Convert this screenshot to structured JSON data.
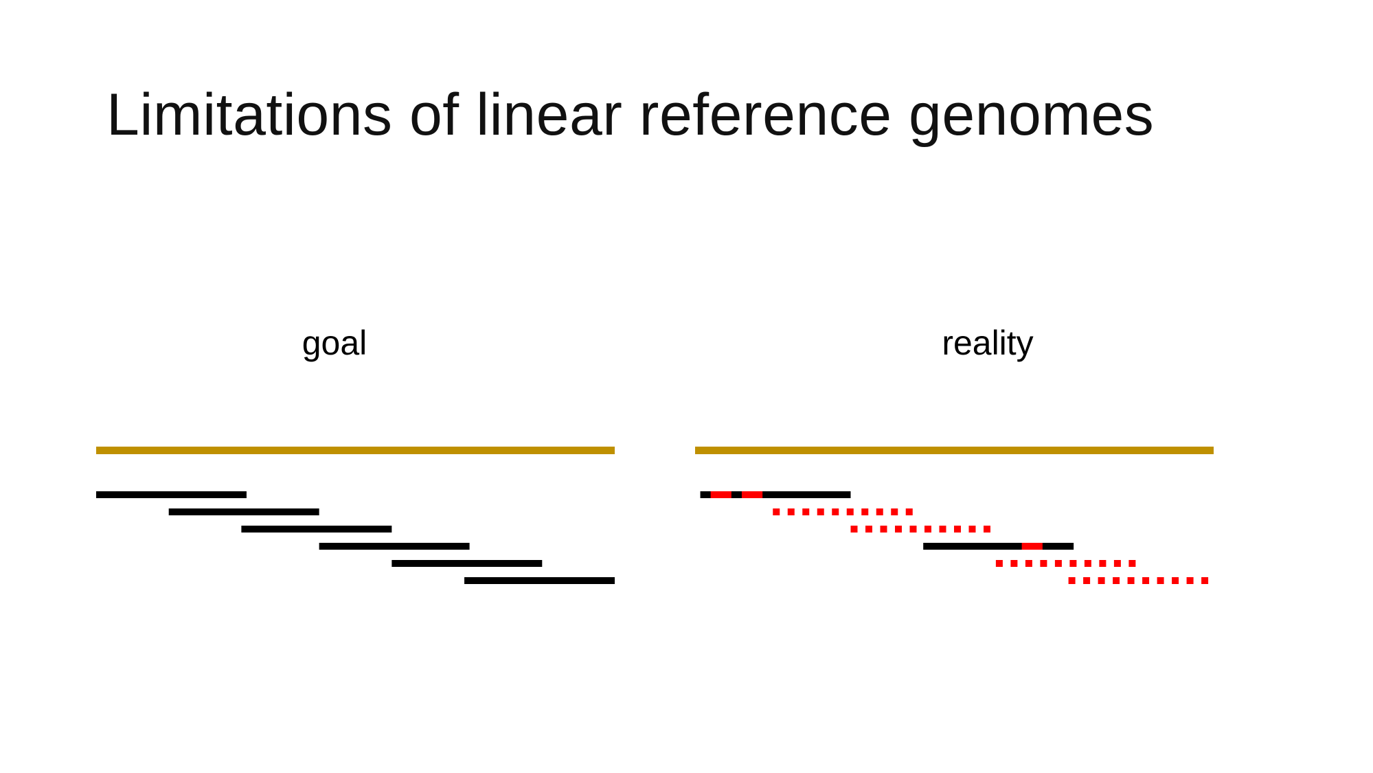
{
  "slide": {
    "title": "Limitations of linear reference genomes"
  },
  "panels": {
    "goal": {
      "label": "goal",
      "reads": [
        {
          "start": 0.0,
          "end": 0.29,
          "mismatches": [],
          "style": "solid"
        },
        {
          "start": 0.14,
          "end": 0.43,
          "mismatches": [],
          "style": "solid"
        },
        {
          "start": 0.28,
          "end": 0.57,
          "mismatches": [],
          "style": "solid"
        },
        {
          "start": 0.43,
          "end": 0.72,
          "mismatches": [],
          "style": "solid"
        },
        {
          "start": 0.57,
          "end": 0.86,
          "mismatches": [],
          "style": "solid"
        },
        {
          "start": 0.71,
          "end": 1.0,
          "mismatches": [],
          "style": "solid"
        }
      ]
    },
    "reality": {
      "label": "reality",
      "reads": [
        {
          "start": 0.01,
          "end": 0.3,
          "mismatches": [
            [
              0.03,
              0.07
            ],
            [
              0.09,
              0.13
            ]
          ],
          "style": "solid"
        },
        {
          "start": 0.15,
          "end": 0.44,
          "mismatches": [],
          "style": "dotted"
        },
        {
          "start": 0.3,
          "end": 0.58,
          "mismatches": [],
          "style": "dotted"
        },
        {
          "start": 0.44,
          "end": 0.73,
          "mismatches": [
            [
              0.63,
              0.67
            ]
          ],
          "style": "solid"
        },
        {
          "start": 0.58,
          "end": 0.87,
          "mismatches": [],
          "style": "dotted"
        },
        {
          "start": 0.72,
          "end": 1.01,
          "mismatches": [],
          "style": "dotted"
        }
      ]
    }
  },
  "colors": {
    "reference": "#bf9000",
    "read": "#000000",
    "mismatch": "#ff0000"
  }
}
